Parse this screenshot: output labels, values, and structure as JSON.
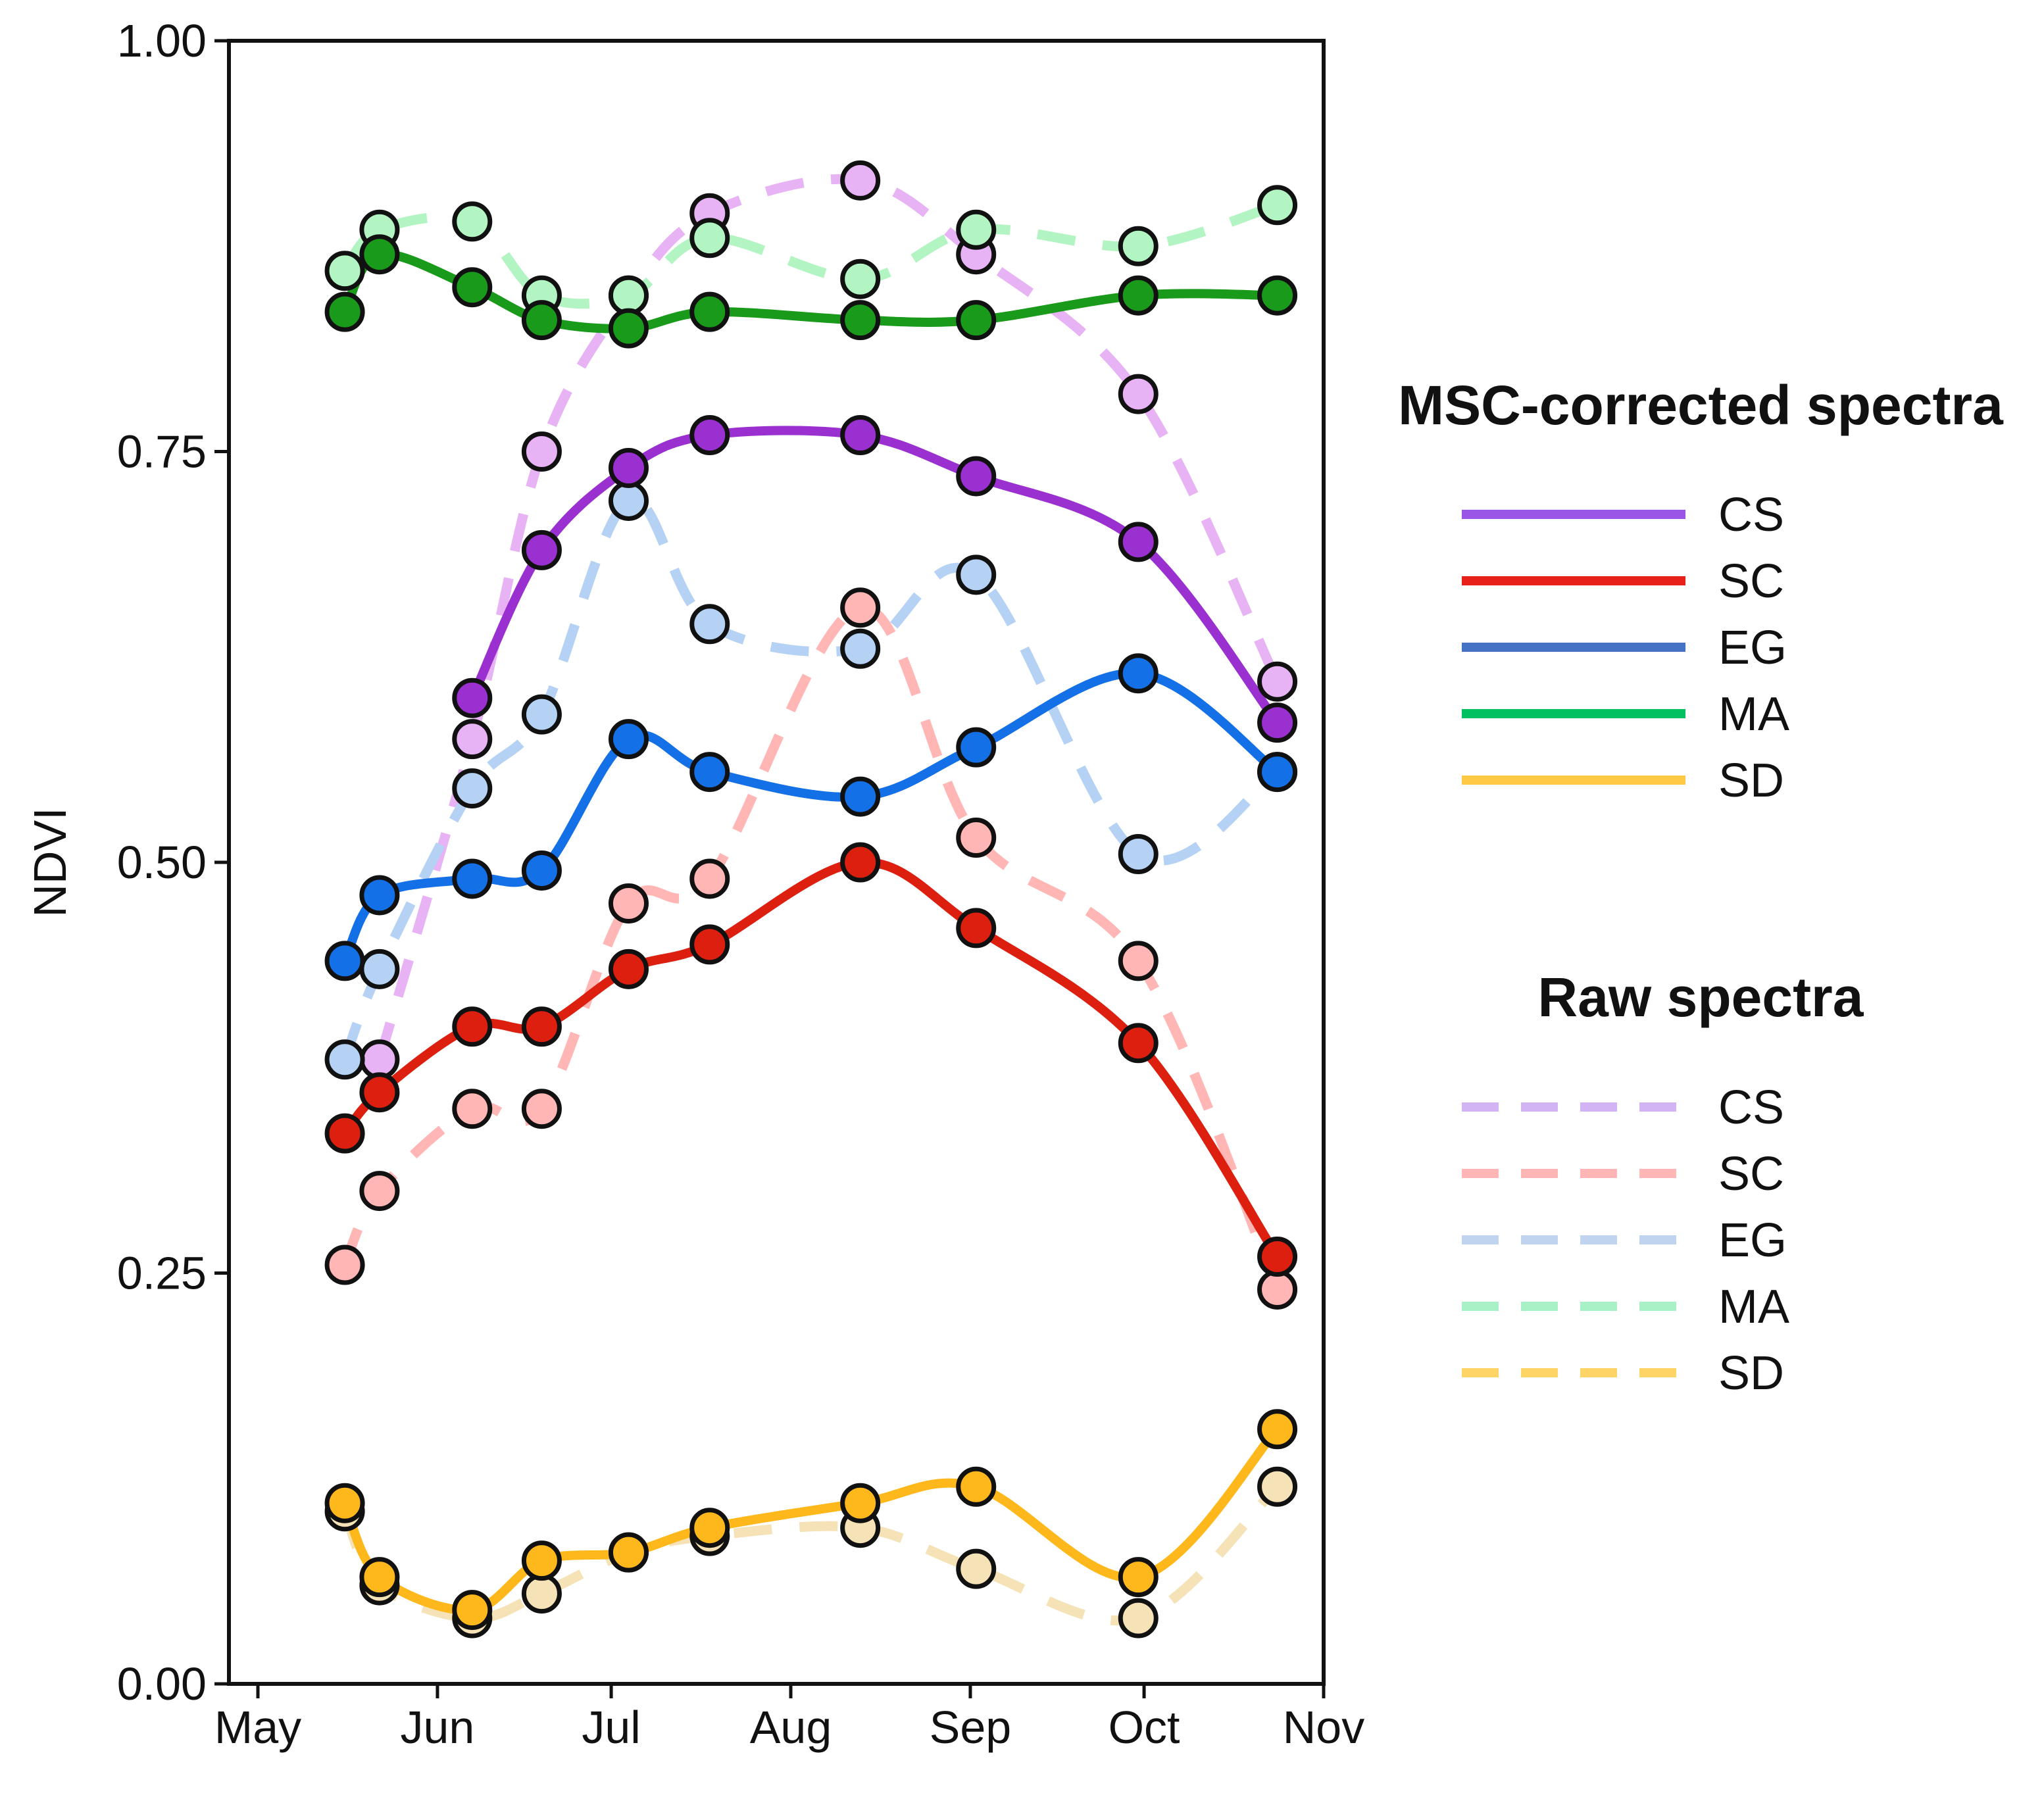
{
  "chart_data": {
    "type": "line",
    "xlabel": "",
    "ylabel": "NDVI",
    "x_ticks": [
      "May",
      "Jun",
      "Jul",
      "Aug",
      "Sep",
      "Oct",
      "Nov"
    ],
    "x_tick_dates": [
      "2000-05-01",
      "2000-06-01",
      "2000-07-01",
      "2000-08-01",
      "2000-09-01",
      "2000-10-01",
      "2000-11-01"
    ],
    "xlim": [
      "2000-04-26",
      "2000-11-01"
    ],
    "y_ticks": [
      "0.00",
      "0.25",
      "0.50",
      "0.75",
      "1.00"
    ],
    "ylim": [
      0,
      1
    ],
    "grid": false,
    "x": [
      "2000-05-16",
      "2000-05-22",
      "2000-06-07",
      "2000-06-19",
      "2000-07-04",
      "2000-07-18",
      "2000-08-13",
      "2000-09-02",
      "2000-09-30",
      "2000-10-24"
    ],
    "legend_groups": [
      {
        "title": "MSC-corrected spectra",
        "style": "solid",
        "entries": [
          "CS",
          "SC",
          "EG",
          "MA",
          "SD"
        ]
      },
      {
        "title": "Raw spectra",
        "style": "dashed",
        "entries": [
          "CS",
          "SC",
          "EG",
          "MA",
          "SD"
        ]
      }
    ],
    "series": [
      {
        "name": "CS",
        "group": "MSC-corrected spectra",
        "style": "solid",
        "color": "#9b30d0",
        "legend_color": "#9b55e6",
        "values": [
          null,
          null,
          0.6,
          0.69,
          0.74,
          0.76,
          0.76,
          0.735,
          0.695,
          0.585
        ]
      },
      {
        "name": "SC",
        "group": "MSC-corrected spectra",
        "style": "solid",
        "color": "#dd1f10",
        "legend_color": "#e8201a",
        "values": [
          0.335,
          0.36,
          0.4,
          0.4,
          0.435,
          0.45,
          0.5,
          0.46,
          0.39,
          0.26
        ]
      },
      {
        "name": "EG",
        "group": "MSC-corrected spectra",
        "style": "solid",
        "color": "#1470e6",
        "legend_color": "#4472c4",
        "values": [
          0.44,
          0.48,
          0.49,
          0.495,
          0.575,
          0.555,
          0.54,
          0.57,
          0.615,
          0.555
        ]
      },
      {
        "name": "MA",
        "group": "MSC-corrected spectra",
        "style": "solid",
        "color": "#1a9a1a",
        "legend_color": "#00c060",
        "values": [
          0.835,
          0.87,
          0.85,
          0.83,
          0.825,
          0.835,
          0.83,
          0.83,
          0.845,
          0.845
        ]
      },
      {
        "name": "SD",
        "group": "MSC-corrected spectra",
        "style": "solid",
        "color": "#ffb81c",
        "legend_color": "#ffc845",
        "values": [
          0.11,
          0.065,
          0.045,
          0.075,
          0.08,
          0.095,
          0.11,
          0.12,
          0.065,
          0.155
        ]
      },
      {
        "name": "CS",
        "group": "Raw spectra",
        "style": "dashed",
        "color": "#e8b3f5",
        "legend_color": "#d2b4f5",
        "values": [
          null,
          0.38,
          0.575,
          0.75,
          0.845,
          0.895,
          0.915,
          0.87,
          0.785,
          0.61
        ]
      },
      {
        "name": "SC",
        "group": "Raw spectra",
        "style": "dashed",
        "color": "#ffb6b4",
        "legend_color": "#ffb6b4",
        "values": [
          0.255,
          0.3,
          0.35,
          0.35,
          0.475,
          0.49,
          0.655,
          0.515,
          0.44,
          0.24
        ]
      },
      {
        "name": "EG",
        "group": "Raw spectra",
        "style": "dashed",
        "color": "#b5d2f5",
        "legend_color": "#c0d4f0",
        "values": [
          0.38,
          0.435,
          0.545,
          0.59,
          0.72,
          0.645,
          0.63,
          0.675,
          0.505,
          0.555
        ]
      },
      {
        "name": "MA",
        "group": "Raw spectra",
        "style": "dashed",
        "color": "#b2f5c2",
        "legend_color": "#a8f0c6",
        "values": [
          0.86,
          0.885,
          0.89,
          0.845,
          0.845,
          0.88,
          0.855,
          0.885,
          0.875,
          0.9
        ]
      },
      {
        "name": "SD",
        "group": "Raw spectra",
        "style": "dashed",
        "color": "#f5e2b6",
        "legend_color": "#ffd466",
        "values": [
          0.105,
          0.06,
          0.04,
          0.055,
          0.08,
          0.09,
          0.095,
          0.07,
          0.04,
          0.12
        ]
      }
    ]
  }
}
